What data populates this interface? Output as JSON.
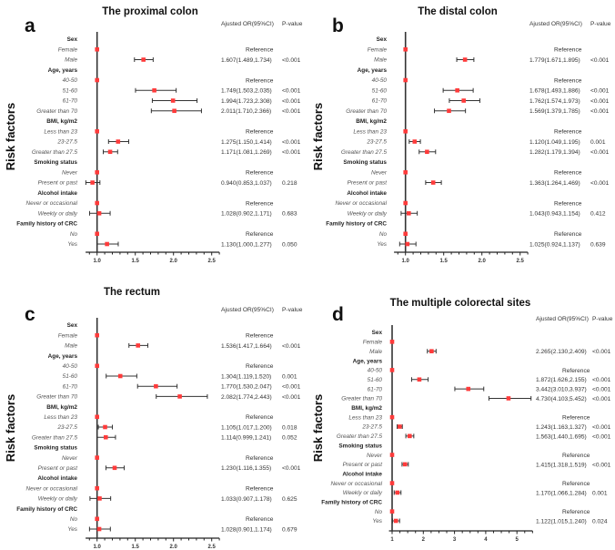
{
  "chart_data": [
    {
      "panel": "a",
      "title": "The proximal colon",
      "type": "forest",
      "columns": [
        "Ajusted OR(95%CI)",
        "P-value"
      ],
      "ylabel": "Risk factors",
      "xlim": [
        0.85,
        2.6
      ],
      "xticks": [
        "1.0",
        "1.5",
        "2.0",
        "2.5"
      ],
      "point_color": "#ff3b3b",
      "rows": [
        {
          "label": "Sex",
          "header": true
        },
        {
          "label": "Female",
          "or": 1,
          "text": "Reference"
        },
        {
          "label": "Male",
          "or": 1.607,
          "lo": 1.489,
          "hi": 1.734,
          "text": "1.607(1.489,1.734)",
          "p": "<0.001"
        },
        {
          "label": "Age,  years",
          "header": true
        },
        {
          "label": "40-50",
          "or": 1,
          "text": "Reference"
        },
        {
          "label": "51-60",
          "or": 1.749,
          "lo": 1.503,
          "hi": 2.035,
          "text": "1.749(1.503,2.035)",
          "p": "<0.001"
        },
        {
          "label": "61-70",
          "or": 1.994,
          "lo": 1.723,
          "hi": 2.308,
          "text": "1.994(1.723,2.308)",
          "p": "<0.001"
        },
        {
          "label": "Greater than 70",
          "or": 2.011,
          "lo": 1.71,
          "hi": 2.366,
          "text": "2.011(1.710,2.366)",
          "p": "<0.001"
        },
        {
          "label": "BMI, kg/m2",
          "header": true
        },
        {
          "label": "Less than 23",
          "or": 1,
          "text": "Reference"
        },
        {
          "label": "23-27.5",
          "or": 1.275,
          "lo": 1.15,
          "hi": 1.414,
          "text": "1.275(1.150,1.414)",
          "p": "<0.001"
        },
        {
          "label": "Greater than 27.5",
          "or": 1.171,
          "lo": 1.081,
          "hi": 1.269,
          "text": "1.171(1.081,1.269)",
          "p": "<0.001"
        },
        {
          "label": "Smoking status",
          "header": true
        },
        {
          "label": "Never",
          "or": 1,
          "text": "Reference"
        },
        {
          "label": "Present or past",
          "or": 0.94,
          "lo": 0.853,
          "hi": 1.037,
          "text": "0.940(0.853,1.037)",
          "p": "0.218"
        },
        {
          "label": "Alcohol intake",
          "header": true
        },
        {
          "label": "Never or occasional",
          "or": 1,
          "text": "Reference"
        },
        {
          "label": "Weekly or daily",
          "or": 1.028,
          "lo": 0.902,
          "hi": 1.171,
          "text": "1.028(0.902,1.171)",
          "p": "0.683"
        },
        {
          "label": "Family history of CRC",
          "header": true
        },
        {
          "label": "No",
          "or": 1,
          "text": "Reference"
        },
        {
          "label": "Yes",
          "or": 1.13,
          "lo": 1.0,
          "hi": 1.277,
          "text": "1.130(1.000,1.277)",
          "p": "0.050"
        }
      ]
    },
    {
      "panel": "b",
      "title": "The distal colon",
      "type": "forest",
      "columns": [
        "Ajusted OR(95%CI)",
        "P-value"
      ],
      "ylabel": "Risk factors",
      "xlim": [
        0.85,
        2.6
      ],
      "xticks": [
        "1.0",
        "1.5",
        "2.0",
        "2.5"
      ],
      "point_color": "#ff3b3b",
      "rows": [
        {
          "label": "Sex",
          "header": true
        },
        {
          "label": "Female",
          "or": 1,
          "text": "Reference"
        },
        {
          "label": "Male",
          "or": 1.779,
          "lo": 1.671,
          "hi": 1.895,
          "text": "1.779(1.671,1.895)",
          "p": "<0.001"
        },
        {
          "label": "Age,  years",
          "header": true
        },
        {
          "label": "40-50",
          "or": 1,
          "text": "Reference"
        },
        {
          "label": "51-60",
          "or": 1.678,
          "lo": 1.493,
          "hi": 1.886,
          "text": "1.678(1.493,1.886)",
          "p": "<0.001"
        },
        {
          "label": "61-70",
          "or": 1.762,
          "lo": 1.574,
          "hi": 1.973,
          "text": "1.762(1.574,1.973)",
          "p": "<0.001"
        },
        {
          "label": "Greater than 70",
          "or": 1.569,
          "lo": 1.379,
          "hi": 1.785,
          "text": "1.569(1.379,1.785)",
          "p": "<0.001"
        },
        {
          "label": "BMI, kg/m2",
          "header": true
        },
        {
          "label": "Less than 23",
          "or": 1,
          "text": "Reference"
        },
        {
          "label": "23-27.5",
          "or": 1.12,
          "lo": 1.049,
          "hi": 1.195,
          "text": "1.120(1.049,1.195)",
          "p": "0.001"
        },
        {
          "label": "Greater than 27.5",
          "or": 1.282,
          "lo": 1.179,
          "hi": 1.394,
          "text": "1.282(1.179,1.394)",
          "p": "<0.001"
        },
        {
          "label": "Smoking status",
          "header": true
        },
        {
          "label": "Never",
          "or": 1,
          "text": "Reference"
        },
        {
          "label": "Present or past",
          "or": 1.363,
          "lo": 1.264,
          "hi": 1.469,
          "text": "1.363(1.264,1.469)",
          "p": "<0.001"
        },
        {
          "label": "Alcohol intake",
          "header": true
        },
        {
          "label": "Never or occasional",
          "or": 1,
          "text": "Reference"
        },
        {
          "label": "Weekly or daily",
          "or": 1.043,
          "lo": 0.943,
          "hi": 1.154,
          "text": "1.043(0.943,1.154)",
          "p": "0.412"
        },
        {
          "label": "Family history of CRC",
          "header": true
        },
        {
          "label": "No",
          "or": 1,
          "text": "Reference"
        },
        {
          "label": "Yes",
          "or": 1.025,
          "lo": 0.924,
          "hi": 1.137,
          "text": "1.025(0.924,1.137)",
          "p": "0.639"
        }
      ]
    },
    {
      "panel": "c",
      "title": "The rectum",
      "type": "forest",
      "columns": [
        "Ajusted OR(95%CI)",
        "P-value"
      ],
      "ylabel": "Risk factors",
      "xlim": [
        0.85,
        2.6
      ],
      "xticks": [
        "1.0",
        "1.5",
        "2.0",
        "2.5"
      ],
      "point_color": "#ff3b3b",
      "rows": [
        {
          "label": "Sex",
          "header": true
        },
        {
          "label": "Female",
          "or": 1,
          "text": "Reference"
        },
        {
          "label": "Male",
          "or": 1.536,
          "lo": 1.417,
          "hi": 1.664,
          "text": "1.536(1.417,1.664)",
          "p": "<0.001"
        },
        {
          "label": "Age,  years",
          "header": true
        },
        {
          "label": "40-50",
          "or": 1,
          "text": "Reference"
        },
        {
          "label": "51-60",
          "or": 1.304,
          "lo": 1.119,
          "hi": 1.52,
          "text": "1.304(1.119,1.520)",
          "p": "0.001"
        },
        {
          "label": "61-70",
          "or": 1.77,
          "lo": 1.53,
          "hi": 2.047,
          "text": "1.770(1.530,2.047)",
          "p": "<0.001"
        },
        {
          "label": "Greater than 70",
          "or": 2.082,
          "lo": 1.774,
          "hi": 2.443,
          "text": "2.082(1.774,2.443)",
          "p": "<0.001"
        },
        {
          "label": "BMI, kg/m2",
          "header": true
        },
        {
          "label": "Less than 23",
          "or": 1,
          "text": "Reference"
        },
        {
          "label": "23-27.5",
          "or": 1.105,
          "lo": 1.017,
          "hi": 1.2,
          "text": "1.105(1.017,1.200)",
          "p": "0.018"
        },
        {
          "label": "Greater than 27.5",
          "or": 1.114,
          "lo": 0.999,
          "hi": 1.241,
          "text": "1.114(0.999,1.241)",
          "p": "0.052"
        },
        {
          "label": "Smoking status",
          "header": true
        },
        {
          "label": "Never",
          "or": 1,
          "text": "Reference"
        },
        {
          "label": "Present or past",
          "or": 1.23,
          "lo": 1.116,
          "hi": 1.355,
          "text": "1.230(1.116,1.355)",
          "p": "<0.001"
        },
        {
          "label": "Alcohol intake",
          "header": true
        },
        {
          "label": "Never or occasional",
          "or": 1,
          "text": "Reference"
        },
        {
          "label": "Weekly or daily",
          "or": 1.033,
          "lo": 0.907,
          "hi": 1.178,
          "text": "1.033(0.907,1.178)",
          "p": "0.625"
        },
        {
          "label": "Family history of CRC",
          "header": true
        },
        {
          "label": "No",
          "or": 1,
          "text": "Reference"
        },
        {
          "label": "Yes",
          "or": 1.028,
          "lo": 0.901,
          "hi": 1.174,
          "text": "1.028(0.901,1.174)",
          "p": "0.679"
        }
      ]
    },
    {
      "panel": "d",
      "title": "The multiple colorectal sites",
      "type": "forest",
      "columns": [
        "Ajusted OR(95%CI)",
        "P-value"
      ],
      "ylabel": "Risk factors",
      "xlim": [
        0.9,
        5.5
      ],
      "xticks": [
        "1",
        "2",
        "3",
        "4",
        "5"
      ],
      "point_color": "#ff3b3b",
      "rows": [
        {
          "label": "Sex",
          "header": true
        },
        {
          "label": "Female",
          "or": 1,
          "text": ""
        },
        {
          "label": "Male",
          "or": 2.265,
          "lo": 2.13,
          "hi": 2.409,
          "text": "2.265(2.130,2.409)",
          "p": "<0.001"
        },
        {
          "label": "Age,  years",
          "header": true
        },
        {
          "label": "40-50",
          "or": 1,
          "text": "Reference"
        },
        {
          "label": "51-60",
          "or": 1.872,
          "lo": 1.626,
          "hi": 2.155,
          "text": "1.872(1.626,2.155)",
          "p": "<0.001"
        },
        {
          "label": "61-70",
          "or": 3.442,
          "lo": 3.01,
          "hi": 3.937,
          "text": "3.442(3.010,3.937)",
          "p": "<0.001"
        },
        {
          "label": "Greater than 70",
          "or": 4.73,
          "lo": 4.103,
          "hi": 5.452,
          "text": "4.730(4.103,5.452)",
          "p": "<0.001"
        },
        {
          "label": "BMI, kg/m2",
          "header": true
        },
        {
          "label": "Less than 23",
          "or": 1,
          "text": "Reference"
        },
        {
          "label": "23-27.5",
          "or": 1.243,
          "lo": 1.163,
          "hi": 1.327,
          "text": "1.243(1.163,1.327)",
          "p": "<0.001"
        },
        {
          "label": "Greater than 27.5",
          "or": 1.563,
          "lo": 1.44,
          "hi": 1.695,
          "text": "1.563(1.440,1.695)",
          "p": "<0.001"
        },
        {
          "label": "Smoking status",
          "header": true
        },
        {
          "label": "Never",
          "or": 1,
          "text": "Reference"
        },
        {
          "label": "Present or past",
          "or": 1.415,
          "lo": 1.318,
          "hi": 1.519,
          "text": "1.415(1.318,1.519)",
          "p": "<0.001"
        },
        {
          "label": "Alcohol intake",
          "header": true
        },
        {
          "label": "Never or occasional",
          "or": 1,
          "text": "Reference"
        },
        {
          "label": "Weekly or daily",
          "or": 1.17,
          "lo": 1.066,
          "hi": 1.284,
          "text": "1.170(1.066,1.284)",
          "p": "0.001"
        },
        {
          "label": "Family history of CRC",
          "header": true
        },
        {
          "label": "No",
          "or": 1,
          "text": "Reference"
        },
        {
          "label": "Yes",
          "or": 1.122,
          "lo": 1.015,
          "hi": 1.24,
          "text": "1.122(1.015,1.240)",
          "p": "0.024"
        }
      ]
    }
  ]
}
